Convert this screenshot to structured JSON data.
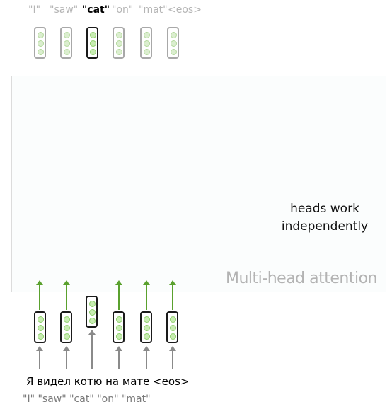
{
  "output_tokens": [
    {
      "label": "\"I\""
    },
    {
      "label": "\"saw\""
    },
    {
      "label": "\"cat\""
    },
    {
      "label": "\"on\""
    },
    {
      "label": "\"mat\""
    },
    {
      "label": "<eos>"
    }
  ],
  "active_token_index": 2,
  "block": {
    "title": "Multi-head attention",
    "note_line1": "heads work",
    "note_line2": "independently"
  },
  "source_sentence": "Я видел котю на мате <eos>",
  "bottom_labels": "\"I\" \"saw\"  \"cat\" \"on\" \"mat\"",
  "colors": {
    "vector_fill": "#c8edb2",
    "arrow_green": "#5aa12e",
    "arrow_gray": "#8a8a8a"
  }
}
